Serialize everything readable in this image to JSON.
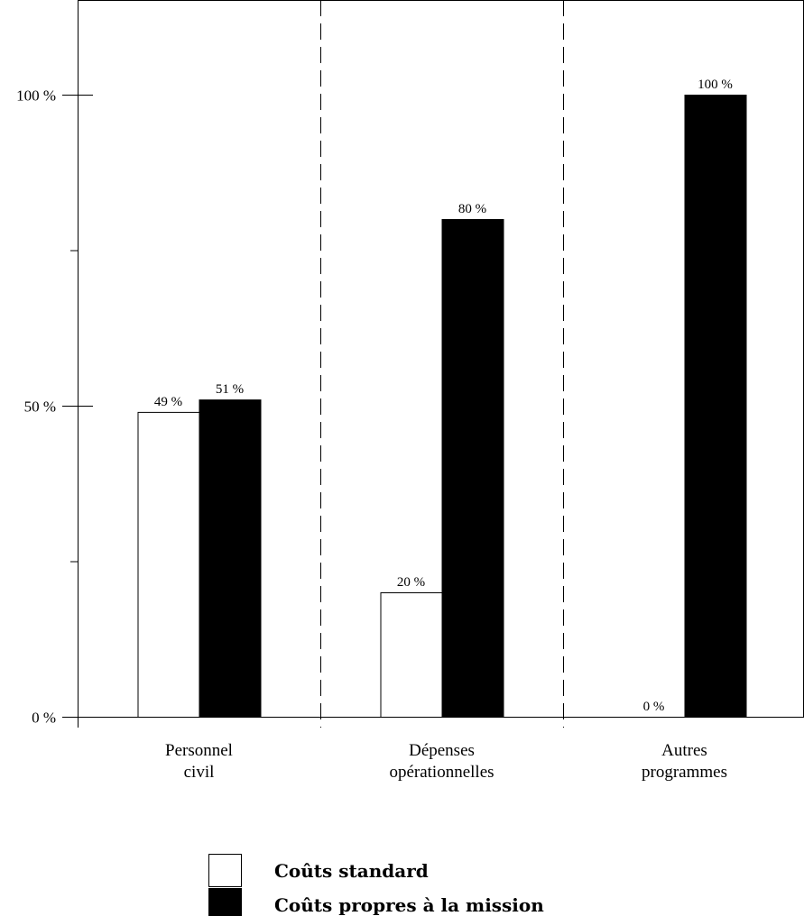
{
  "chart_data": {
    "type": "bar",
    "title": "",
    "xlabel": "",
    "ylabel": "",
    "ylim": [
      0,
      1.1
    ],
    "yticks": [
      {
        "value": 0,
        "label": "0 %"
      },
      {
        "value": 0.5,
        "label": "50 %"
      },
      {
        "value": 1,
        "label": "100 %"
      }
    ],
    "minor_yticks": [
      0.25,
      0.75
    ],
    "grid": false,
    "category_separators": "dashed",
    "legend_position": "bottom",
    "categories": [
      [
        "Personnel",
        "civil"
      ],
      [
        "Dépenses",
        "opérationnelles"
      ],
      [
        "Autres",
        "programmes"
      ]
    ],
    "series": [
      {
        "name": "Coûts standard",
        "color": "#ffffff",
        "values": [
          0.49,
          0.2,
          0
        ],
        "labels": [
          "49 %",
          "20 %",
          "0 %"
        ]
      },
      {
        "name": "Coûts propres à la mission",
        "color": "#000000",
        "values": [
          0.51,
          0.8,
          1
        ],
        "labels": [
          "51 %",
          "80 %",
          "100 %"
        ]
      }
    ]
  }
}
